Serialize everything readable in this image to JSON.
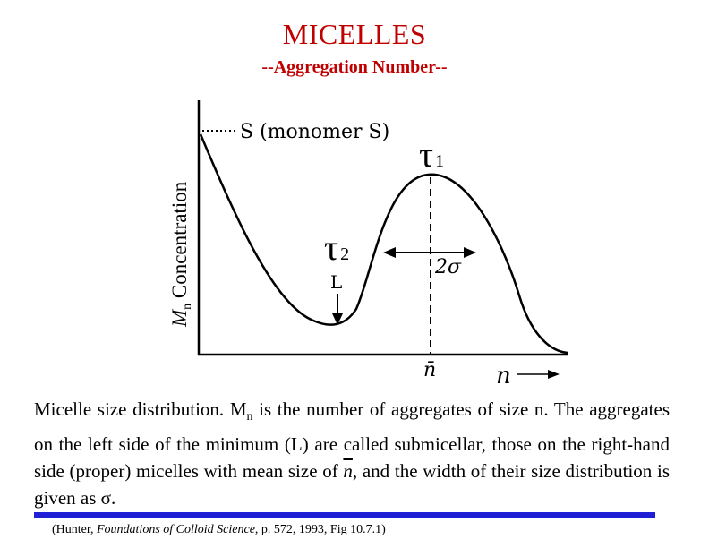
{
  "header": {
    "title": "MICELLES",
    "subtitle": "--Aggregation Number--"
  },
  "diagram": {
    "y_axis_label_symbol": "M",
    "y_axis_label_sub": "n",
    "y_axis_label_text": " Concentration",
    "x_axis_label": "n",
    "monomer_label": "S (monomer S)",
    "tau1_symbol": "τ",
    "tau1_sub": "1",
    "tau2_symbol": "τ",
    "tau2_sub": "2",
    "minimum_label": "L",
    "width_label": "2σ",
    "mean_label": "n̄"
  },
  "caption": {
    "part1": "Micelle size distribution. M",
    "sub_n": "n",
    "part2": " is the number of aggregates of size n. The aggregates on the left side of the minimum (L) are called submicellar, those on the right-hand side (proper) micelles with mean size of ",
    "nbar": "n",
    "part3": ", and the width of their size distribution is given as σ."
  },
  "citation": {
    "prefix": "(Hunter, ",
    "book": "Foundations of Colloid Science",
    "suffix": ", p. 572, 1993, Fig 10.7.1)"
  },
  "colors": {
    "title": "#c00000",
    "rule": "#1f1fd6"
  }
}
